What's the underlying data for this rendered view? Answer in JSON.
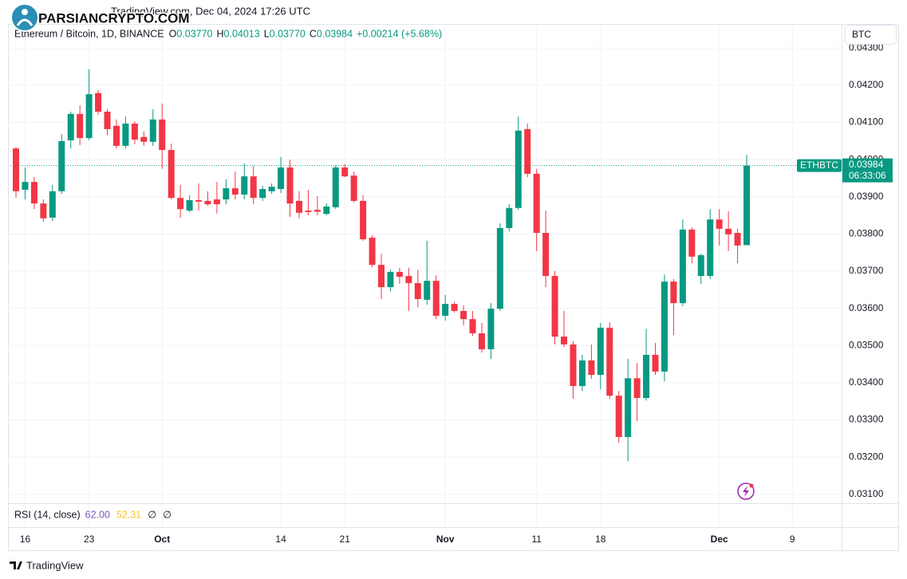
{
  "header": {
    "published": "TradingView.com, Dec 04, 2024 17:26 UTC",
    "ohlc": [
      {
        "key": "O",
        "value": "0.03770"
      },
      {
        "key": "H",
        "value": "0.04013"
      },
      {
        "key": "L",
        "value": "0.03770"
      },
      {
        "key": "C",
        "value": "0.03984"
      }
    ],
    "change": "+0.00214 (+5.68%)"
  },
  "watermark": "PARSIANCRYPTO.COM",
  "currency_button": "BTC",
  "price_label": {
    "symbol": "ETHBTC",
    "price": "0.03984",
    "countdown": "06:33:06"
  },
  "rsi": {
    "title": "RSI (14, close)",
    "values": [
      "62.00",
      "52.31",
      "∅",
      "∅"
    ],
    "colors": [
      "#7e57c2",
      "#f7c325",
      "#131722",
      "#131722"
    ]
  },
  "footer": "TradingView",
  "chart_data": {
    "type": "candlestick",
    "title": "Ethereum / Bitcoin, 1D, BINANCE",
    "up_color": "#089981",
    "down_color": "#f23645",
    "grid": true,
    "categories": [
      null,
      "16",
      null,
      null,
      null,
      null,
      null,
      null,
      "23",
      null,
      null,
      null,
      null,
      null,
      null,
      null,
      "Oct",
      null,
      null,
      null,
      null,
      null,
      null,
      null,
      null,
      null,
      null,
      null,
      null,
      "14",
      null,
      null,
      null,
      null,
      null,
      null,
      "21",
      null,
      null,
      null,
      null,
      null,
      null,
      null,
      null,
      null,
      null,
      "Nov",
      null,
      null,
      null,
      null,
      null,
      null,
      null,
      null,
      null,
      "11",
      null,
      null,
      null,
      null,
      null,
      null,
      "18",
      null,
      null,
      null,
      null,
      null,
      null,
      null,
      null,
      null,
      null,
      null,
      null,
      "Dec",
      null,
      null,
      null,
      null,
      null,
      null,
      null,
      "9",
      null,
      null,
      null,
      null,
      null
    ],
    "open": [
      0.0403,
      0.03919,
      0.0394,
      0.03882,
      0.03844,
      0.03915,
      0.04052,
      0.04123,
      0.04058,
      0.04179,
      0.04129,
      0.04091,
      0.04037,
      0.04097,
      0.04061,
      0.04048,
      0.04108,
      0.04026,
      0.03897,
      0.03863,
      0.03891,
      0.03889,
      0.03893,
      0.03893,
      0.03923,
      0.03906,
      0.03955,
      0.03897,
      0.03915,
      0.03921,
      0.03979,
      0.03889,
      0.03863,
      0.03865,
      0.03854,
      0.03872,
      0.03979,
      0.03957,
      0.03889,
      0.0379,
      0.03717,
      0.03657,
      0.03698,
      0.03687,
      0.03668,
      0.03623,
      0.03674,
      0.0358,
      0.03612,
      0.03593,
      0.03571,
      0.03533,
      0.0349,
      0.03599,
      0.03816,
      0.0387,
      0.04082,
      0.03962,
      0.03803,
      0.03687,
      0.03524,
      0.03503,
      0.03391,
      0.0346,
      0.03421,
      0.03548,
      0.03365,
      0.03254,
      0.03412,
      0.03359,
      0.03475,
      0.0343,
      0.03672,
      0.03614,
      0.03812,
      0.03687,
      0.03687,
      0.03839,
      0.03814,
      0.03803,
      0.0377,
      null,
      null,
      null,
      null,
      null,
      null,
      null,
      null,
      null,
      null
    ],
    "high": [
      0.04034,
      0.03979,
      0.03953,
      0.03893,
      0.03932,
      0.04069,
      0.04129,
      0.04146,
      0.04243,
      0.04187,
      0.04136,
      0.04108,
      0.04116,
      0.04103,
      0.04076,
      0.04136,
      0.04151,
      0.04043,
      0.03932,
      0.03904,
      0.03936,
      0.03915,
      0.0394,
      0.03947,
      0.03968,
      0.0399,
      0.03983,
      0.0393,
      0.03936,
      0.04007,
      0.04,
      0.03915,
      0.03919,
      0.03902,
      0.03882,
      0.03985,
      0.03988,
      0.03968,
      0.03904,
      0.03797,
      0.03747,
      0.03704,
      0.03709,
      0.03709,
      0.03704,
      0.03782,
      0.03689,
      0.03636,
      0.03618,
      0.03608,
      0.03593,
      0.03561,
      0.03614,
      0.03829,
      0.0388,
      0.04116,
      0.04097,
      0.03975,
      0.03863,
      0.037,
      0.03593,
      0.03511,
      0.03475,
      0.03503,
      0.03561,
      0.03563,
      0.03378,
      0.03464,
      0.03453,
      0.03545,
      0.03507,
      0.03691,
      0.03679,
      0.03839,
      0.03818,
      0.03747,
      0.03867,
      0.03867,
      0.03861,
      0.03814,
      0.04013,
      null,
      null,
      null,
      null,
      null,
      null,
      null,
      null,
      null,
      null
    ],
    "low": [
      0.03898,
      0.03893,
      0.03867,
      0.03833,
      0.03835,
      0.03908,
      0.0403,
      0.04039,
      0.04052,
      0.04121,
      0.04065,
      0.0403,
      0.0403,
      0.04041,
      0.04037,
      0.04037,
      0.03975,
      0.03893,
      0.03844,
      0.03859,
      0.03863,
      0.03876,
      0.03855,
      0.0388,
      0.03893,
      0.03893,
      0.0388,
      0.03889,
      0.03908,
      0.0391,
      0.03846,
      0.03842,
      0.0385,
      0.0385,
      0.0385,
      0.03867,
      0.03953,
      0.03885,
      0.03782,
      0.03711,
      0.03625,
      0.03646,
      0.03666,
      0.03593,
      0.03603,
      0.0361,
      0.03571,
      0.03567,
      0.03588,
      0.03554,
      0.03526,
      0.03481,
      0.03464,
      0.03593,
      0.03807,
      0.03865,
      0.03953,
      0.03754,
      0.03657,
      0.03503,
      0.03496,
      0.03357,
      0.03378,
      0.0341,
      0.03382,
      0.03357,
      0.03239,
      0.03189,
      0.03297,
      0.03352,
      0.03421,
      0.03404,
      0.03528,
      0.03606,
      0.03721,
      0.03666,
      0.03679,
      0.03769,
      0.03754,
      0.03721,
      0.0377,
      null,
      null,
      null,
      null,
      null,
      null,
      null,
      null,
      null,
      null
    ],
    "close": [
      0.03915,
      0.0394,
      0.03882,
      0.03842,
      0.03915,
      0.0405,
      0.04123,
      0.04058,
      0.04176,
      0.04129,
      0.04082,
      0.04037,
      0.04097,
      0.04054,
      0.04048,
      0.04108,
      0.04026,
      0.03897,
      0.03867,
      0.03891,
      0.03887,
      0.0388,
      0.0388,
      0.03923,
      0.03906,
      0.03955,
      0.03897,
      0.03921,
      0.03927,
      0.03979,
      0.03882,
      0.03857,
      0.03859,
      0.0386,
      0.03874,
      0.03979,
      0.03955,
      0.03889,
      0.03786,
      0.03717,
      0.03657,
      0.03698,
      0.03685,
      0.03668,
      0.03625,
      0.03674,
      0.0358,
      0.03612,
      0.03593,
      0.03571,
      0.03533,
      0.0349,
      0.03599,
      0.03816,
      0.0387,
      0.04078,
      0.03962,
      0.03803,
      0.03687,
      0.03524,
      0.03503,
      0.03391,
      0.0346,
      0.03421,
      0.03548,
      0.03365,
      0.03254,
      0.03412,
      0.03359,
      0.03475,
      0.0343,
      0.03672,
      0.03614,
      0.03812,
      0.03739,
      0.03743,
      0.03839,
      0.03814,
      0.03799,
      0.03769,
      0.03984,
      null,
      null,
      null,
      null,
      null,
      null,
      null,
      null,
      null,
      null
    ],
    "ylim": [
      0.03078,
      0.04365
    ],
    "yticks": [
      {
        "value": 0.031,
        "label": "0.03100"
      },
      {
        "value": 0.032,
        "label": "0.03200"
      },
      {
        "value": 0.033,
        "label": "0.03300"
      },
      {
        "value": 0.034,
        "label": "0.03400"
      },
      {
        "value": 0.035,
        "label": "0.03500"
      },
      {
        "value": 0.036,
        "label": "0.03600"
      },
      {
        "value": 0.037,
        "label": "0.03700"
      },
      {
        "value": 0.038,
        "label": "0.03800"
      },
      {
        "value": 0.039,
        "label": "0.03900"
      },
      {
        "value": 0.04,
        "label": "0.04000"
      },
      {
        "value": 0.041,
        "label": "0.04100"
      },
      {
        "value": 0.042,
        "label": "0.04200"
      },
      {
        "value": 0.043,
        "label": "0.04300"
      }
    ]
  }
}
